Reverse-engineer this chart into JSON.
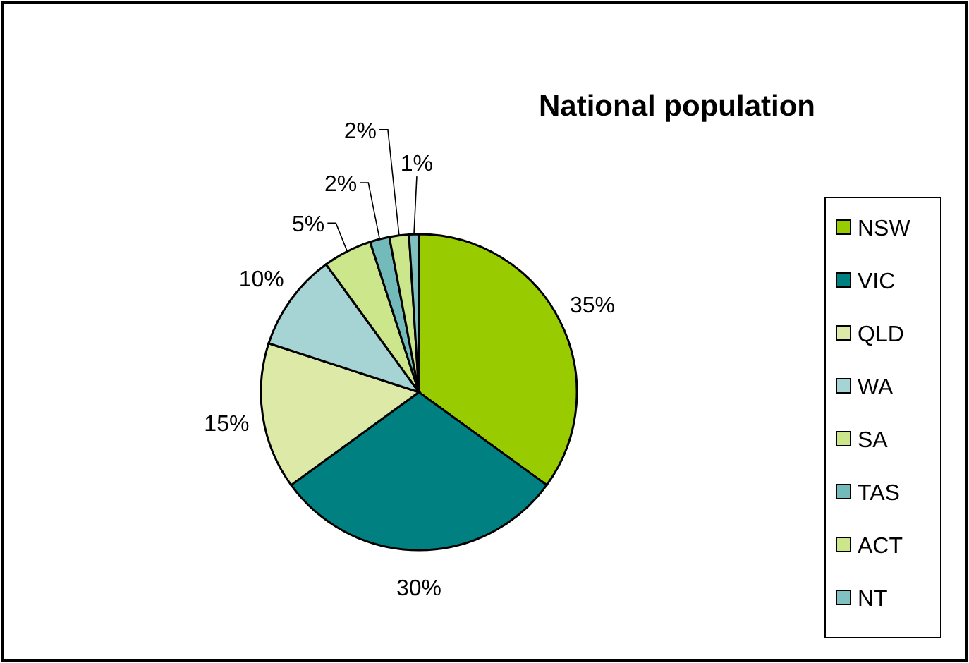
{
  "chart_data": {
    "type": "pie",
    "title": "National population",
    "categories": [
      "NSW",
      "VIC",
      "QLD",
      "WA",
      "SA",
      "TAS",
      "ACT",
      "NT"
    ],
    "values": [
      35,
      30,
      15,
      10,
      5,
      2,
      2,
      1
    ],
    "colors": [
      "#99cc00",
      "#008080",
      "#dde9a6",
      "#a6d4d4",
      "#cce68c",
      "#73baba",
      "#cce68c",
      "#80c0c0"
    ],
    "value_labels": [
      "35%",
      "30%",
      "15%",
      "10%",
      "5%",
      "2%",
      "2%",
      "1%"
    ],
    "legend": "right"
  }
}
